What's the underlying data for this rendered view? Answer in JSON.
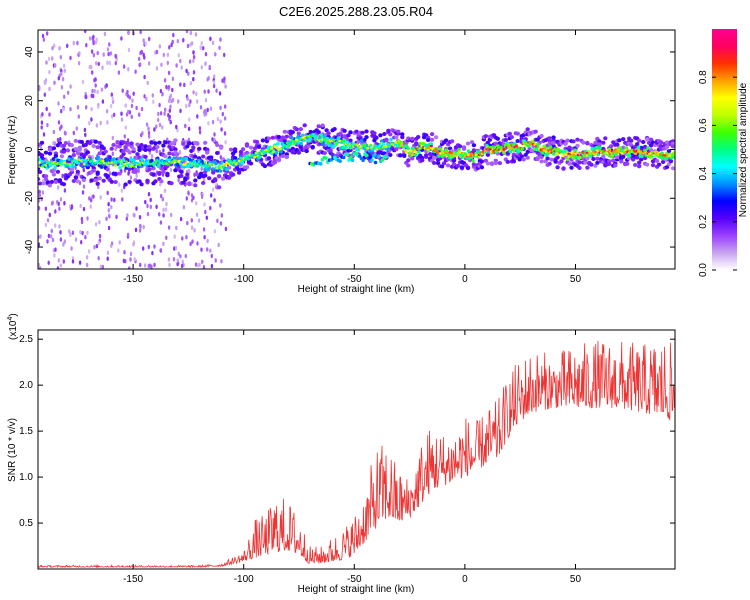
{
  "title": "C2E6.2025.288.23.05.R04",
  "chart_data": [
    {
      "type": "heatmap",
      "panel": "top",
      "xlabel": "Height of straight line (km)",
      "ylabel": "Frequency (Hz)",
      "xlim": [
        -193,
        95
      ],
      "ylim": [
        -49,
        49
      ],
      "xticks": [
        -150,
        -100,
        -50,
        0,
        50
      ],
      "xtick_labels": [
        "-150",
        "-100",
        "-50",
        "0",
        "50"
      ],
      "yticks": [
        -40,
        -20,
        0,
        20,
        40
      ],
      "ytick_labels": [
        "-40",
        "-20",
        "0",
        "20",
        "40"
      ],
      "ridge": {
        "description_height_km": [
          -193,
          -170,
          -150,
          -130,
          -110,
          -100,
          -90,
          -80,
          -75,
          -70,
          -60,
          -50,
          -40,
          -35,
          -30,
          -25,
          -20,
          -15,
          -10,
          -5,
          0,
          5,
          10,
          15,
          20,
          25,
          30,
          35,
          40,
          45,
          50,
          60,
          70,
          80,
          90,
          95
        ],
        "frequency_hz": [
          -6,
          -5,
          -6,
          -5,
          -7,
          -4,
          -1,
          2,
          4,
          5,
          3,
          2,
          1,
          2,
          3,
          -2,
          1,
          1,
          -2,
          -2,
          -2,
          -3,
          0,
          0,
          1,
          1,
          3,
          0,
          -1,
          -2,
          -2,
          -1,
          -1,
          -1,
          -2,
          -2
        ]
      },
      "branch": {
        "height_km": [
          -70,
          -65,
          -60,
          -55,
          -50,
          -45,
          -40,
          -35
        ],
        "frequency_hz": [
          -5,
          -5,
          -4,
          -3,
          -3,
          -3,
          -4,
          -4
        ]
      },
      "colorbar": {
        "label": "Normalized spectral amplitude",
        "range": [
          0,
          1
        ],
        "ticks": [
          0.0,
          0.2,
          0.4,
          0.6,
          0.8
        ],
        "tick_labels": [
          "0.0",
          "0.2",
          "0.4",
          "0.6",
          "0.8"
        ],
        "colors": [
          "#ffffff",
          "#c8a4f0",
          "#9b40ff",
          "#5500ff",
          "#0000ff",
          "#0090ff",
          "#00ffff",
          "#00ff80",
          "#40ff00",
          "#c0ff00",
          "#ffff00",
          "#ffa000",
          "#ff3000",
          "#ff0060",
          "#ff0090"
        ]
      }
    },
    {
      "type": "line",
      "panel": "bottom",
      "xlabel": "Height of straight line (km)",
      "ylabel": "SNR (10 * v/v)",
      "y_multiplier": "(x10",
      "y_multiplier_exp": "4",
      "y_multiplier_close": ")",
      "xlim": [
        -193,
        95
      ],
      "ylim": [
        0,
        2.6
      ],
      "xticks": [
        -150,
        -100,
        -50,
        0,
        50
      ],
      "xtick_labels": [
        "-150",
        "-100",
        "-50",
        "0",
        "50"
      ],
      "yticks": [
        0.5,
        1.0,
        1.5,
        2.0,
        2.5
      ],
      "ytick_labels": [
        "0.5",
        "1.0",
        "1.5",
        "2.0",
        "2.5"
      ],
      "line_color": "#ee3333",
      "envelope": {
        "x": [
          -193,
          -120,
          -110,
          -100,
          -95,
          -90,
          -85,
          -80,
          -75,
          -70,
          -65,
          -60,
          -55,
          -50,
          -45,
          -40,
          -35,
          -30,
          -25,
          -20,
          -15,
          -10,
          -5,
          0,
          5,
          10,
          15,
          20,
          25,
          30,
          40,
          50,
          60,
          70,
          80,
          90,
          95
        ],
        "baseline": [
          0.02,
          0.02,
          0.03,
          0.08,
          0.12,
          0.15,
          0.18,
          0.2,
          0.15,
          0.05,
          0.06,
          0.08,
          0.1,
          0.15,
          0.3,
          0.45,
          0.55,
          0.5,
          0.55,
          0.7,
          0.85,
          0.9,
          0.95,
          1.0,
          1.05,
          1.15,
          1.2,
          1.45,
          1.6,
          1.7,
          1.75,
          1.75,
          1.75,
          1.75,
          1.7,
          1.65,
          1.6
        ],
        "peak": [
          0.04,
          0.04,
          0.06,
          0.2,
          0.55,
          0.6,
          0.85,
          0.75,
          0.6,
          0.25,
          0.25,
          0.35,
          0.45,
          0.6,
          0.9,
          1.35,
          1.4,
          1.1,
          1.0,
          1.4,
          1.6,
          1.5,
          1.55,
          1.7,
          1.6,
          1.75,
          1.85,
          2.15,
          2.3,
          2.4,
          2.35,
          2.45,
          2.5,
          2.5,
          2.45,
          2.55,
          2.4
        ]
      }
    }
  ]
}
